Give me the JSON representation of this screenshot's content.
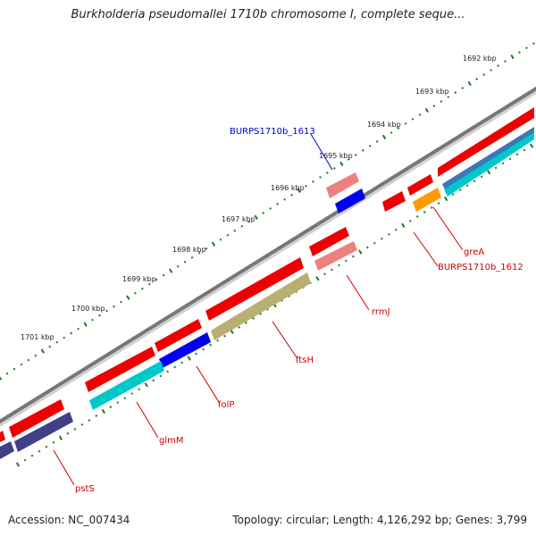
{
  "title": "Burkholderia pseudomallei 1710b chromosome I, complete seque...",
  "accession": "Accession: NC_007434",
  "summary": "Topology: circular; Length: 4,126,292 bp; Genes: 3,799",
  "tick_labels": [
    "1692 kbp",
    "1693 kbp",
    "1694 kbp",
    "1695 kbp",
    "1696 kbp",
    "1697 kbp",
    "1698 kbp",
    "1699 kbp",
    "1700 kbp",
    "1701 kbp"
  ],
  "genes": [
    {
      "name": "greA",
      "color": "#cc0000"
    },
    {
      "name": "BURPS1710b_1612",
      "color": "#cc0000"
    },
    {
      "name": "rrmJ",
      "color": "#cc0000"
    },
    {
      "name": "ftsH",
      "color": "#cc0000"
    },
    {
      "name": "folP",
      "color": "#cc0000"
    },
    {
      "name": "glmM",
      "color": "#cc0000"
    },
    {
      "name": "pstS",
      "color": "#cc0000"
    },
    {
      "name": "BURPS1710b_1613",
      "color": "#0000cc"
    }
  ],
  "colors": {
    "backbone": "#777777",
    "tick": "#1e7a1e",
    "forward_cds": "#ee0000",
    "reverse_cds": "#00c8c8",
    "gene_misc": "#ee8080",
    "blue_feature": "#0000ee",
    "olive_feature": "#b8b070",
    "navy_feature": "#404088",
    "orange_feature": "#ff9900",
    "steel_feature": "#3a78b8"
  }
}
